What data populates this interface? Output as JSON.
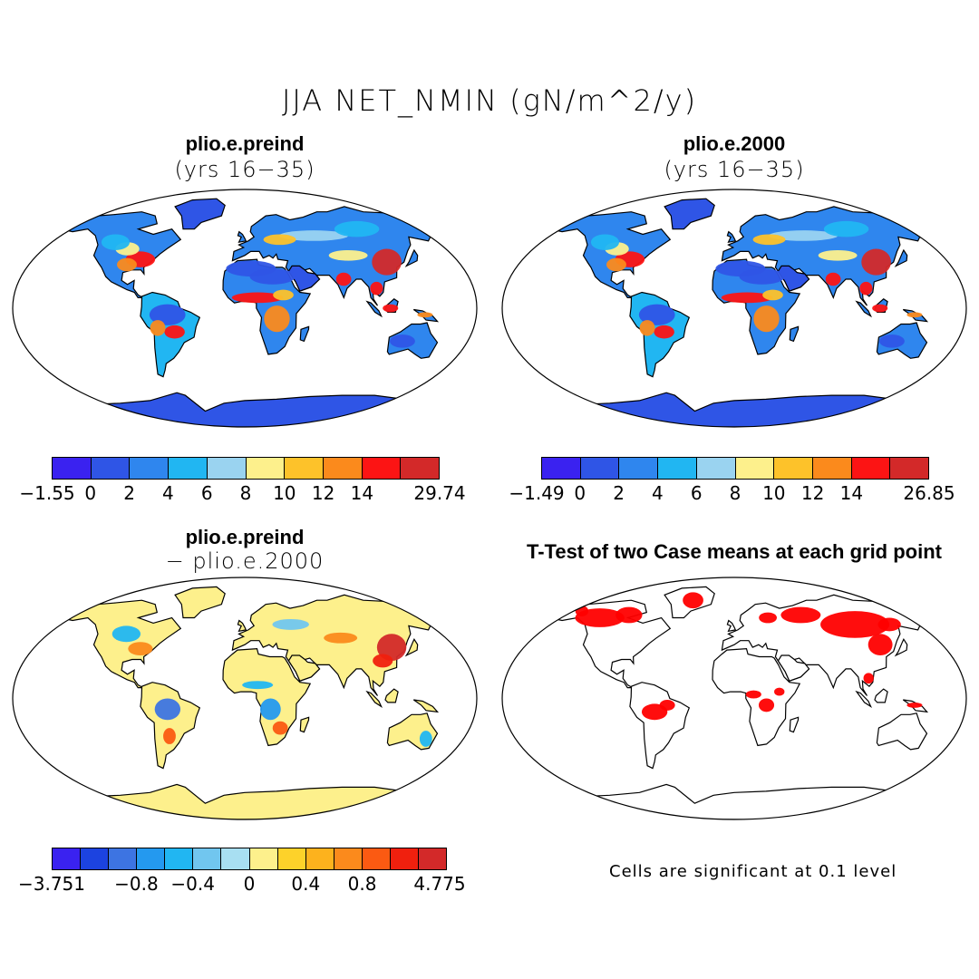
{
  "title": "JJA NET_NMIN (gN/m^2/y)",
  "colors": {
    "ocean": "#ffffff",
    "coast": "#000000",
    "sig": "#ff0000",
    "abs_palette": [
      "#3a22f0",
      "#2f55e6",
      "#2f86ee",
      "#21b6f2",
      "#9ad3f0",
      "#fdf08c",
      "#fdc22a",
      "#fb8a1c",
      "#fc1414",
      "#d32929"
    ],
    "diff_palette": [
      "#3a22f0",
      "#1c43e0",
      "#3d74e2",
      "#2499ef",
      "#21b6f2",
      "#71c6ef",
      "#a8dff2",
      "#fdf08c",
      "#fdd22a",
      "#fdb21d",
      "#fb8a1c",
      "#fb5a12",
      "#f0200e",
      "#d32929"
    ]
  },
  "chart_data": [
    {
      "type": "heatmap",
      "title": "plio.e.preind",
      "subtitle": "(yrs 16−35)",
      "colorbar": {
        "min_label": "−1.55",
        "max_label": "29.74",
        "ticks": [
          "0",
          "2",
          "4",
          "6",
          "8",
          "10",
          "12",
          "14"
        ]
      }
    },
    {
      "type": "heatmap",
      "title": "plio.e.2000",
      "subtitle": "(yrs 16−35)",
      "colorbar": {
        "min_label": "−1.49",
        "max_label": "26.85",
        "ticks": [
          "0",
          "2",
          "4",
          "6",
          "8",
          "10",
          "12",
          "14"
        ]
      }
    },
    {
      "type": "heatmap",
      "title": "plio.e.preind",
      "subtitle": "− plio.e.2000",
      "colorbar": {
        "min_label": "−3.751",
        "max_label": "4.775",
        "ticks": [
          "−0.8",
          "−0.4",
          "0",
          "0.4",
          "0.8"
        ]
      }
    },
    {
      "type": "heatmap",
      "title": "T-Test of two Case means at each grid point",
      "note": "Cells are significant at 0.1 level"
    }
  ]
}
